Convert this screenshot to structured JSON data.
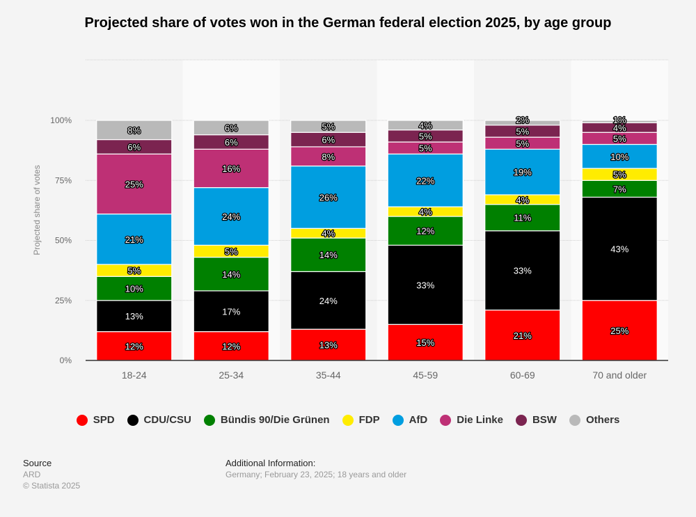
{
  "chart_data": {
    "type": "bar",
    "stacked": true,
    "title": "Projected share of votes won in the German federal election 2025, by age group",
    "xlabel": "",
    "ylabel": "Projected share of votes",
    "ylim": [
      0,
      100
    ],
    "yticks": [
      "0%",
      "25%",
      "50%",
      "75%",
      "100%"
    ],
    "grid": true,
    "legend_position": "bottom",
    "categories": [
      "18-24",
      "25-34",
      "35-44",
      "45-59",
      "60-69",
      "70 and older"
    ],
    "series": [
      {
        "name": "SPD",
        "color": "#ff0000",
        "values": [
          12,
          12,
          13,
          15,
          21,
          25
        ]
      },
      {
        "name": "CDU/CSU",
        "color": "#000000",
        "values": [
          13,
          17,
          24,
          33,
          33,
          43
        ]
      },
      {
        "name": "Bündis 90/Die Grünen",
        "color": "#008000",
        "values": [
          10,
          14,
          14,
          12,
          11,
          7
        ]
      },
      {
        "name": "FDP",
        "color": "#ffec00",
        "values": [
          5,
          5,
          4,
          4,
          4,
          5
        ]
      },
      {
        "name": "AfD",
        "color": "#009ee0",
        "values": [
          21,
          24,
          26,
          22,
          19,
          10
        ]
      },
      {
        "name": "Die Linke",
        "color": "#be3075",
        "values": [
          25,
          16,
          8,
          5,
          5,
          5
        ]
      },
      {
        "name": "BSW",
        "color": "#7b2450",
        "values": [
          6,
          6,
          6,
          5,
          5,
          4
        ]
      },
      {
        "name": "Others",
        "color": "#b9b9b9",
        "values": [
          8,
          6,
          5,
          4,
          2,
          1
        ]
      }
    ],
    "value_suffix": "%"
  },
  "footer": {
    "source_label": "Source",
    "source_value": "ARD",
    "copyright": "© Statista 2025",
    "additional_label": "Additional Information:",
    "additional_value": "Germany; February 23, 2025; 18 years and older"
  }
}
